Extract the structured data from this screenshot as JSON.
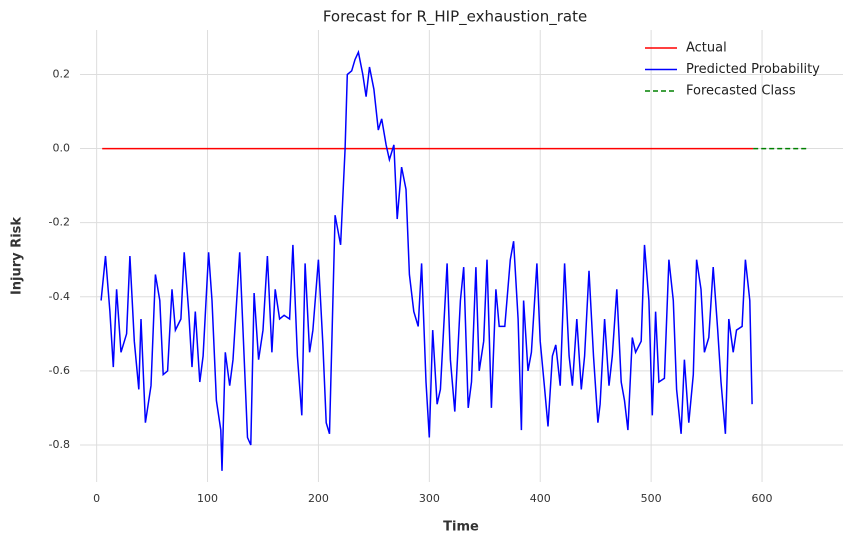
{
  "chart_data": {
    "type": "line",
    "title": "Forecast for R_HIP_exhaustion_rate",
    "x_label": "Time",
    "y_label": "Injury Risk",
    "xlim": [
      -15,
      673
    ],
    "ylim": [
      -0.9,
      0.32
    ],
    "xticks": [
      0,
      100,
      200,
      300,
      400,
      500,
      600
    ],
    "yticks": [
      -0.8,
      -0.6,
      -0.4,
      -0.2,
      {
        "value": 0,
        "label": "0.0"
      },
      0.2
    ],
    "grid": true,
    "legend": "upper right",
    "series": [
      {
        "name": "Actual",
        "color": "#ff0000",
        "linestyle": "solid",
        "x": [
          5,
          100,
          200,
          300,
          400,
          500,
          592
        ],
        "values": [
          0,
          0,
          0,
          0,
          0,
          0,
          0
        ]
      },
      {
        "name": "Predicted Probability",
        "color": "#0000ff",
        "linestyle": "solid",
        "x": [
          4,
          8,
          12,
          15,
          18,
          22,
          27,
          30,
          34,
          38,
          40,
          44,
          49,
          53,
          57,
          60,
          64,
          68,
          71,
          76,
          79,
          83,
          86,
          89,
          93,
          96,
          101,
          104,
          108,
          112,
          113,
          116,
          120,
          123,
          129,
          132,
          136,
          139,
          142,
          146,
          150,
          154,
          158,
          161,
          165,
          169,
          174,
          177,
          181,
          185,
          188,
          192,
          195,
          200,
          204,
          207,
          210,
          213,
          215,
          220,
          224,
          226,
          230,
          233,
          236,
          240,
          243,
          246,
          250,
          254,
          257,
          261,
          264,
          268,
          271,
          275,
          279,
          282,
          286,
          290,
          293,
          297,
          300,
          303,
          307,
          310,
          316,
          319,
          323,
          328,
          331,
          335,
          338,
          342,
          345,
          349,
          352,
          356,
          360,
          363,
          368,
          373,
          376,
          380,
          383,
          385,
          389,
          392,
          397,
          400,
          404,
          407,
          411,
          414,
          418,
          422,
          426,
          429,
          433,
          437,
          440,
          444,
          448,
          452,
          454,
          458,
          462,
          465,
          469,
          473,
          476,
          479,
          483,
          486,
          491,
          494,
          498,
          501,
          504,
          507,
          512,
          516,
          520,
          523,
          527,
          530,
          534,
          538,
          541,
          545,
          548,
          552,
          556,
          560,
          563,
          567,
          570,
          574,
          577,
          582,
          585,
          589,
          591
        ],
        "values": [
          -0.41,
          -0.29,
          -0.44,
          -0.59,
          -0.38,
          -0.55,
          -0.5,
          -0.29,
          -0.52,
          -0.65,
          -0.46,
          -0.74,
          -0.64,
          -0.34,
          -0.41,
          -0.61,
          -0.6,
          -0.38,
          -0.49,
          -0.46,
          -0.28,
          -0.44,
          -0.59,
          -0.44,
          -0.63,
          -0.56,
          -0.28,
          -0.41,
          -0.68,
          -0.76,
          -0.87,
          -0.55,
          -0.64,
          -0.57,
          -0.28,
          -0.49,
          -0.78,
          -0.8,
          -0.39,
          -0.57,
          -0.49,
          -0.29,
          -0.55,
          -0.38,
          -0.46,
          -0.45,
          -0.46,
          -0.26,
          -0.56,
          -0.72,
          -0.31,
          -0.55,
          -0.49,
          -0.3,
          -0.53,
          -0.74,
          -0.77,
          -0.41,
          -0.18,
          -0.26,
          0,
          0.2,
          0.21,
          0.24,
          0.26,
          0.2,
          0.14,
          0.22,
          0.16,
          0.05,
          0.08,
          0.01,
          -0.03,
          0.01,
          -0.19,
          -0.05,
          -0.11,
          -0.34,
          -0.44,
          -0.48,
          -0.31,
          -0.63,
          -0.78,
          -0.49,
          -0.69,
          -0.65,
          -0.31,
          -0.57,
          -0.71,
          -0.41,
          -0.32,
          -0.7,
          -0.63,
          -0.32,
          -0.6,
          -0.52,
          -0.3,
          -0.7,
          -0.38,
          -0.48,
          -0.48,
          -0.3,
          -0.25,
          -0.46,
          -0.76,
          -0.41,
          -0.6,
          -0.55,
          -0.31,
          -0.52,
          -0.65,
          -0.75,
          -0.56,
          -0.53,
          -0.64,
          -0.31,
          -0.56,
          -0.64,
          -0.46,
          -0.65,
          -0.56,
          -0.33,
          -0.56,
          -0.74,
          -0.69,
          -0.46,
          -0.64,
          -0.56,
          -0.38,
          -0.63,
          -0.68,
          -0.76,
          -0.51,
          -0.55,
          -0.52,
          -0.26,
          -0.41,
          -0.72,
          -0.44,
          -0.63,
          -0.62,
          -0.3,
          -0.41,
          -0.65,
          -0.77,
          -0.57,
          -0.74,
          -0.61,
          -0.3,
          -0.38,
          -0.55,
          -0.51,
          -0.32,
          -0.49,
          -0.63,
          -0.77,
          -0.46,
          -0.55,
          -0.49,
          -0.48,
          -0.3,
          -0.41,
          -0.69
        ]
      },
      {
        "name": "Forecasted Class",
        "color": "#008000",
        "linestyle": "dashed",
        "x": [
          592,
          640
        ],
        "values": [
          0,
          0
        ]
      }
    ]
  }
}
